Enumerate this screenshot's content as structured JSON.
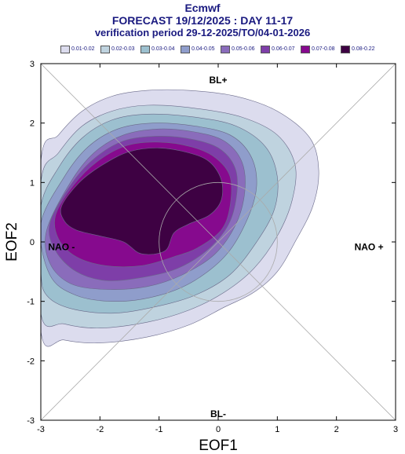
{
  "header": {
    "line1": "Ecmwf",
    "line2": "FORECAST 19/12/2025 : DAY 11-17",
    "line3": "verification period 29-12-2025/TO/04-01-2026"
  },
  "legend": [
    {
      "label": "0.01-0.02",
      "color": "#dcdcee"
    },
    {
      "label": "0.02-0.03",
      "color": "#bfd3df"
    },
    {
      "label": "0.03-0.04",
      "color": "#9cc0cf"
    },
    {
      "label": "0.04-0.05",
      "color": "#8f9dcb"
    },
    {
      "label": "0.05-0.06",
      "color": "#8a6cbb"
    },
    {
      "label": "0.06-0.07",
      "color": "#7e3ea8"
    },
    {
      "label": "0.07-0.08",
      "color": "#860a8e"
    },
    {
      "label": "0.08-0.22",
      "color": "#3e0143"
    }
  ],
  "chart_data": {
    "type": "contour",
    "xlabel": "EOF1",
    "ylabel": "EOF2",
    "xlim": [
      -3,
      3
    ],
    "ylim": [
      -3,
      3
    ],
    "xticks": [
      "-3",
      "-2",
      "-1",
      "0",
      "1",
      "2",
      "3"
    ],
    "yticks": [
      "3",
      "2",
      "1",
      "0",
      "-1",
      "-2",
      "-3"
    ],
    "regime_labels": {
      "top": "BL+",
      "bottom": "BL-",
      "left": "NAO -",
      "right": "NAO +"
    },
    "reference_circle_radius": 1.0,
    "levels": [
      {
        "range": "0.01-0.02",
        "points": [
          [
            -3,
            1.35
          ],
          [
            -2.7,
            1.8
          ],
          [
            -2.3,
            2.2
          ],
          [
            -1.8,
            2.45
          ],
          [
            -1.2,
            2.55
          ],
          [
            -0.5,
            2.55
          ],
          [
            0.3,
            2.45
          ],
          [
            1,
            2.2
          ],
          [
            1.55,
            1.75
          ],
          [
            1.7,
            1.2
          ],
          [
            1.6,
            0.6
          ],
          [
            1.3,
            0
          ],
          [
            1,
            -0.5
          ],
          [
            0.6,
            -0.85
          ],
          [
            0.1,
            -1.1
          ],
          [
            -0.5,
            -1.4
          ],
          [
            -1.2,
            -1.6
          ],
          [
            -2,
            -1.7
          ],
          [
            -2.6,
            -1.65
          ],
          [
            -3,
            -1.5
          ]
        ]
      },
      {
        "range": "0.02-0.03",
        "points": [
          [
            -3,
            1.0
          ],
          [
            -2.7,
            1.5
          ],
          [
            -2.3,
            1.95
          ],
          [
            -1.8,
            2.2
          ],
          [
            -1.2,
            2.3
          ],
          [
            -0.4,
            2.25
          ],
          [
            0.4,
            2.1
          ],
          [
            1,
            1.8
          ],
          [
            1.3,
            1.3
          ],
          [
            1.25,
            0.7
          ],
          [
            1,
            0.1
          ],
          [
            0.6,
            -0.45
          ],
          [
            0.1,
            -0.85
          ],
          [
            -0.5,
            -1.15
          ],
          [
            -1.2,
            -1.35
          ],
          [
            -2,
            -1.45
          ],
          [
            -2.6,
            -1.38
          ],
          [
            -3,
            -1.2
          ]
        ]
      },
      {
        "range": "0.03-0.04",
        "points": [
          [
            -3,
            0.6
          ],
          [
            -2.7,
            1.25
          ],
          [
            -2.3,
            1.75
          ],
          [
            -1.8,
            2.05
          ],
          [
            -1.2,
            2.15
          ],
          [
            -0.4,
            2.1
          ],
          [
            0.3,
            1.95
          ],
          [
            0.8,
            1.6
          ],
          [
            1.0,
            1.1
          ],
          [
            0.95,
            0.55
          ],
          [
            0.65,
            0
          ],
          [
            0.2,
            -0.55
          ],
          [
            -0.4,
            -0.9
          ],
          [
            -1.1,
            -1.1
          ],
          [
            -1.8,
            -1.2
          ],
          [
            -2.5,
            -1.12
          ],
          [
            -2.9,
            -0.9
          ],
          [
            -3,
            -0.5
          ]
        ]
      },
      {
        "range": "0.04-0.05",
        "points": [
          [
            -3,
            0.3
          ],
          [
            -2.6,
            1.1
          ],
          [
            -2.2,
            1.6
          ],
          [
            -1.7,
            1.9
          ],
          [
            -1.1,
            2.0
          ],
          [
            -0.4,
            1.95
          ],
          [
            0.2,
            1.8
          ],
          [
            0.55,
            1.45
          ],
          [
            0.65,
            0.95
          ],
          [
            0.5,
            0.4
          ],
          [
            0.15,
            -0.2
          ],
          [
            -0.4,
            -0.65
          ],
          [
            -1,
            -0.9
          ],
          [
            -1.7,
            -1.0
          ],
          [
            -2.4,
            -0.9
          ],
          [
            -2.85,
            -0.55
          ]
        ]
      },
      {
        "range": "0.05-0.06",
        "points": [
          [
            -2.9,
            0.2
          ],
          [
            -2.5,
            1.0
          ],
          [
            -2.1,
            1.5
          ],
          [
            -1.6,
            1.8
          ],
          [
            -1.0,
            1.9
          ],
          [
            -0.4,
            1.85
          ],
          [
            0.1,
            1.7
          ],
          [
            0.4,
            1.35
          ],
          [
            0.45,
            0.85
          ],
          [
            0.3,
            0.3
          ],
          [
            -0.05,
            -0.2
          ],
          [
            -0.6,
            -0.55
          ],
          [
            -1.2,
            -0.75
          ],
          [
            -1.9,
            -0.8
          ],
          [
            -2.5,
            -0.7
          ],
          [
            -2.85,
            -0.35
          ]
        ]
      },
      {
        "range": "0.06-0.07",
        "points": [
          [
            -2.85,
            0.3
          ],
          [
            -2.5,
            0.95
          ],
          [
            -2.1,
            1.4
          ],
          [
            -1.6,
            1.7
          ],
          [
            -1.0,
            1.78
          ],
          [
            -0.4,
            1.72
          ],
          [
            0.05,
            1.55
          ],
          [
            0.3,
            1.2
          ],
          [
            0.3,
            0.7
          ],
          [
            0.15,
            0.25
          ],
          [
            -0.2,
            -0.15
          ],
          [
            -0.7,
            -0.45
          ],
          [
            -1.3,
            -0.6
          ],
          [
            -1.9,
            -0.65
          ],
          [
            -2.4,
            -0.5
          ],
          [
            -2.75,
            -0.15
          ]
        ]
      },
      {
        "range": "0.07-0.08",
        "points": [
          [
            -2.75,
            0.45
          ],
          [
            -2.45,
            0.95
          ],
          [
            -2.05,
            1.35
          ],
          [
            -1.55,
            1.62
          ],
          [
            -1.0,
            1.68
          ],
          [
            -0.45,
            1.6
          ],
          [
            -0.05,
            1.42
          ],
          [
            0.2,
            1.1
          ],
          [
            0.2,
            0.6
          ],
          [
            0.05,
            0.2
          ],
          [
            -0.35,
            -0.1
          ],
          [
            -0.75,
            -0.25
          ],
          [
            -1.3,
            -0.4
          ],
          [
            -1.9,
            -0.4
          ],
          [
            -2.4,
            -0.25
          ],
          [
            -2.7,
            0.05
          ]
        ]
      },
      {
        "range": "0.08-0.22",
        "points": [
          [
            -2.65,
            0.6
          ],
          [
            -2.35,
            1.0
          ],
          [
            -1.95,
            1.3
          ],
          [
            -1.5,
            1.52
          ],
          [
            -1.0,
            1.58
          ],
          [
            -0.5,
            1.5
          ],
          [
            -0.15,
            1.35
          ],
          [
            0.05,
            1.05
          ],
          [
            0.05,
            0.7
          ],
          [
            -0.15,
            0.45
          ],
          [
            -0.5,
            0.3
          ],
          [
            -0.75,
            0.15
          ],
          [
            -0.9,
            -0.15
          ],
          [
            -1.3,
            -0.2
          ],
          [
            -1.6,
            0
          ],
          [
            -2.0,
            0.1
          ],
          [
            -2.4,
            0.2
          ],
          [
            -2.6,
            0.35
          ]
        ]
      }
    ]
  }
}
